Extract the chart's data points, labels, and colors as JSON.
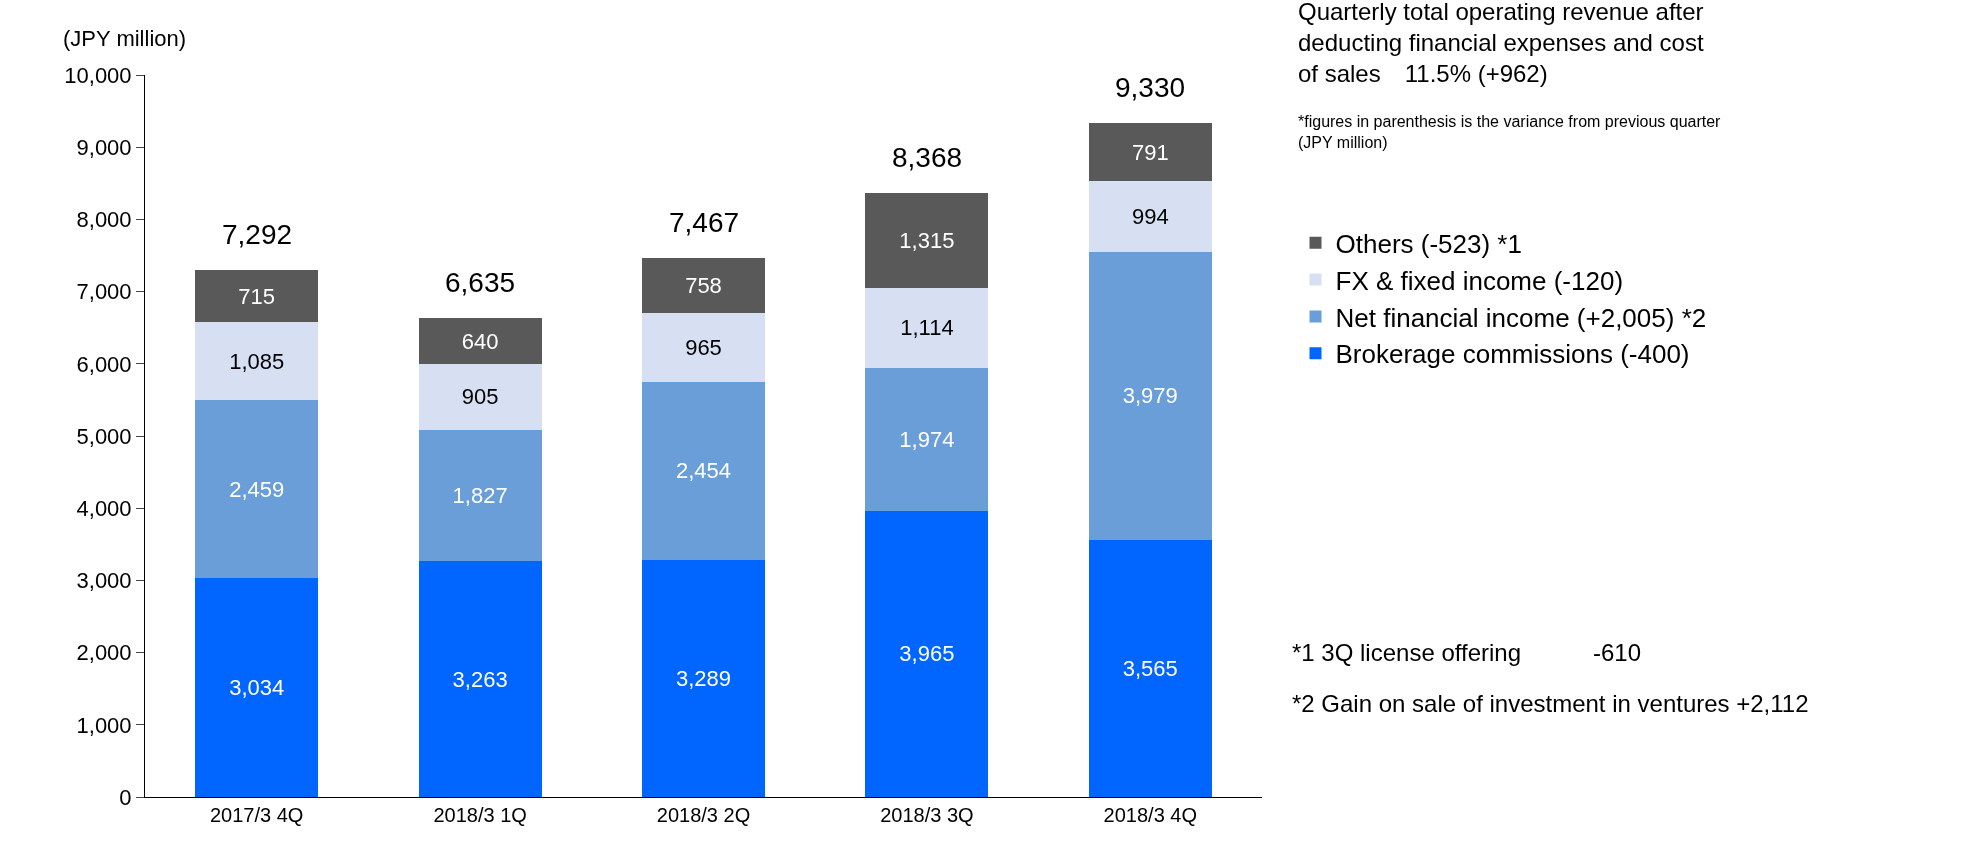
{
  "chart_data": {
    "type": "bar",
    "title": "Quarterly total operating revenue after deducting financial expenses and cost of sales　11.5% (+962)",
    "subtitle": "*figures in parenthesis is the variance from previous quarter (JPY million)",
    "ylabel": "(JPY million)",
    "categories": [
      "2017/3 4Q",
      "2018/3 1Q",
      "2018/3 2Q",
      "2018/3 3Q",
      "2018/3 4Q"
    ],
    "stacked": true,
    "legend": "right",
    "grid": false,
    "series": [
      {
        "name": "Brokerage commissions (-400)",
        "color": "#0066ff",
        "values": [
          3034,
          3263,
          3289,
          3965,
          3565
        ],
        "value_labels": [
          "3,034",
          "3,263",
          "3,289",
          "3,965",
          "3,565"
        ]
      },
      {
        "name": "Net financial income (+2,005) *2",
        "color": "#6a9ed8",
        "values": [
          2459,
          1827,
          2454,
          1974,
          3979
        ],
        "value_labels": [
          "2,459",
          "1,827",
          "2,454",
          "1,974",
          "3,979"
        ]
      },
      {
        "name": "FX & fixed income (-120)",
        "color": "#d6e0f2",
        "values": [
          1085,
          905,
          965,
          1114,
          994
        ],
        "value_labels": [
          "1,085",
          "905",
          "965",
          "1,114",
          "994"
        ]
      },
      {
        "name": "Others (-523) *1",
        "color": "#595959",
        "values": [
          715,
          640,
          758,
          1315,
          791
        ],
        "value_labels": [
          "715",
          "640",
          "758",
          "1,315",
          "791"
        ]
      }
    ],
    "totals": [
      "7,292",
      "6,635",
      "7,467",
      "8,368",
      "9,330"
    ],
    "ylim": [
      0,
      10000
    ],
    "yticks": [
      {
        "value": 0,
        "label": "0"
      },
      {
        "value": 1000,
        "label": "1,000"
      },
      {
        "value": 2000,
        "label": "2,000"
      },
      {
        "value": 3000,
        "label": "3,000"
      },
      {
        "value": 4000,
        "label": "4,000"
      },
      {
        "value": 5000,
        "label": "5,000"
      },
      {
        "value": 6000,
        "label": "6,000"
      },
      {
        "value": 7000,
        "label": "7,000"
      },
      {
        "value": 8000,
        "label": "8,000"
      },
      {
        "value": 9000,
        "label": "9,000"
      },
      {
        "value": 10000,
        "label": "10,000"
      }
    ],
    "annotations": [
      "*1 3Q license offering　　　-610",
      "*2 Gain on sale of investment in ventures +2,112"
    ]
  }
}
